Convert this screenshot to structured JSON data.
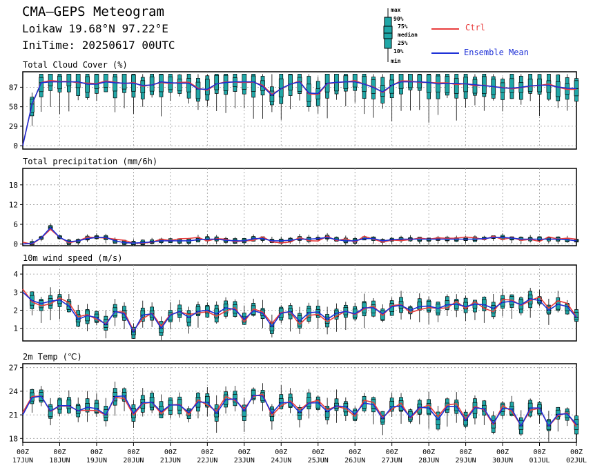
{
  "header": {
    "title": "CMA—GEPS Meteogram",
    "location": "Loikaw 19.68°N 97.22°E",
    "init_time": "IniTime: 20250617 00UTC"
  },
  "legend": {
    "box_labels": [
      "max",
      "90%",
      "75%",
      "median",
      "25%",
      "10%",
      "min"
    ],
    "ctrl_label": "Ctrl",
    "mean_label": "Ensemble Mean",
    "ctrl_color": "#e83c3c",
    "mean_color": "#1c2fd6",
    "box_color": "#20a7a7"
  },
  "chart_data": [
    {
      "type": "box+line",
      "title": "Total Cloud Cover (%)",
      "ylim": [
        -5,
        110
      ],
      "yticks": [
        0,
        29,
        58,
        87
      ],
      "base_values": [
        0,
        93,
        95,
        95,
        95,
        90,
        95,
        93,
        93,
        88,
        95,
        93,
        93,
        80,
        92,
        95,
        95,
        95,
        75,
        90,
        95,
        70,
        93,
        95,
        95,
        90,
        80,
        95,
        95,
        95,
        92,
        93,
        92,
        90,
        88,
        85,
        87,
        90,
        90,
        86,
        85
      ],
      "ctrl_amp": 4,
      "mean_amp": 4,
      "spread_low": 30
    },
    {
      "type": "box+line",
      "title": "Total precipitation (mm/6h)",
      "ylim": [
        -0.5,
        23
      ],
      "yticks": [
        0,
        6,
        12,
        18
      ],
      "base_values": [
        0,
        0.3,
        5,
        0.5,
        1,
        2,
        2,
        0.5,
        0.3,
        0.5,
        1,
        1,
        1,
        1.5,
        1.5,
        1,
        1,
        2,
        1,
        1,
        1.5,
        1.5,
        2,
        1,
        1,
        2,
        1,
        1.5,
        1.5,
        1.5,
        1.5,
        1.5,
        1.5,
        1.5,
        2,
        2,
        1.5,
        1.5,
        1.5,
        1.5,
        1
      ],
      "ctrl_amp": 1.5,
      "mean_amp": 0.8,
      "spread_low": 1
    },
    {
      "type": "box+line",
      "title": "10m wind speed (m/s)",
      "ylim": [
        0.3,
        4.5
      ],
      "yticks": [
        1,
        2,
        3,
        4
      ],
      "base_values": [
        3,
        2.3,
        2.5,
        2.6,
        1.5,
        1.8,
        1.2,
        2.3,
        0.8,
        2.2,
        1,
        2.1,
        1.6,
        2.1,
        1.8,
        2.3,
        1.5,
        2.2,
        1.1,
        2.2,
        1.4,
        2.1,
        1.5,
        2.0,
        1.8,
        2.3,
        1.8,
        2.4,
        2.0,
        2.3,
        2.1,
        2.4,
        2.2,
        2.4,
        2.1,
        2.6,
        2.3,
        2.8,
        2.0,
        2.5,
        1.6
      ],
      "ctrl_amp": 0.4,
      "mean_amp": 0.3,
      "spread_low": 0.6
    },
    {
      "type": "box+line",
      "title": "2m Temp (℃)",
      "ylim": [
        17.5,
        27.5
      ],
      "yticks": [
        18,
        21,
        24,
        27
      ],
      "base_values": [
        21,
        24.3,
        21.5,
        22.5,
        21.5,
        22.2,
        21.0,
        24.5,
        21.2,
        23.2,
        21.4,
        22.7,
        21.3,
        23.3,
        21.2,
        23.8,
        21.5,
        24.5,
        21.2,
        23.2,
        21.3,
        23.1,
        21.4,
        22.5,
        21.1,
        23.2,
        20.5,
        22.8,
        20.7,
        22.6,
        20.4,
        22.9,
        20.3,
        22.7,
        19.9,
        22.8,
        19.6,
        23.0,
        19.6,
        21.8,
        19.8
      ],
      "ctrl_amp": 0.8,
      "mean_amp": 0.4,
      "spread_low": 1.5
    }
  ],
  "x_axis": {
    "hour_label": "00Z",
    "date_labels": [
      "17JUN",
      "18JUN",
      "19JUN",
      "20JUN",
      "21JUN",
      "22JUN",
      "23JUN",
      "24JUN",
      "25JUN",
      "26JUN",
      "27JUN",
      "28JUN",
      "29JUN",
      "30JUN",
      "01JUL",
      "02JUL"
    ]
  },
  "colors": {
    "frame": "#000000",
    "grid": "#999999"
  }
}
